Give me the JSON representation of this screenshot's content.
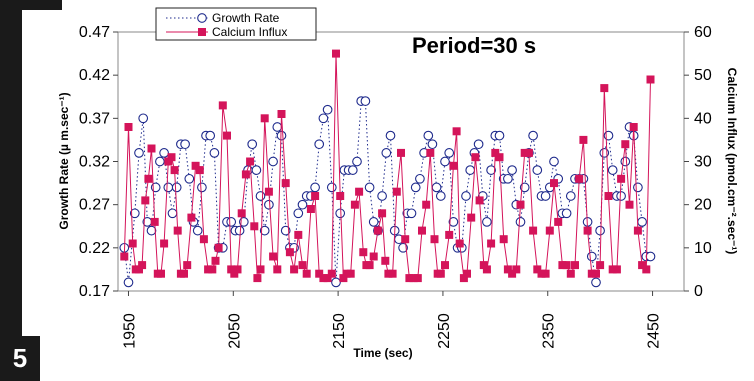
{
  "panel_label": "5",
  "annotation": "Period=30 s",
  "chart_data": {
    "type": "line",
    "xlabel": "Time (sec)",
    "ylabel": "Growth Rate (µ m.sec⁻¹)",
    "y2label": "Calcium Influx (pmol.cm⁻².sec⁻¹)",
    "xlim": [
      1940,
      2480
    ],
    "ylim": [
      0.17,
      0.47
    ],
    "y2lim": [
      0,
      60
    ],
    "x_ticks": [
      "1950",
      "2050",
      "2150",
      "2250",
      "2350",
      "2450"
    ],
    "y_ticks": [
      "0.47",
      "0.42",
      "0.37",
      "0.32",
      "0.27",
      "0.22",
      "0.17"
    ],
    "y2_ticks": [
      "60",
      "50",
      "40",
      "30",
      "20",
      "10",
      "0"
    ],
    "legend": {
      "position": "top-left",
      "entries": [
        "Growth Rate",
        "Calcium Influx"
      ]
    },
    "grid": false,
    "colors": {
      "growth": "#1e2a8c",
      "calcium": "#d4145a"
    },
    "series": [
      {
        "name": "Growth Rate",
        "axis": "left",
        "values": [
          [
            1946,
            0.22
          ],
          [
            1950,
            0.18
          ],
          [
            1956,
            0.26
          ],
          [
            1960,
            0.33
          ],
          [
            1964,
            0.37
          ],
          [
            1968,
            0.25
          ],
          [
            1972,
            0.24
          ],
          [
            1976,
            0.29
          ],
          [
            1980,
            0.32
          ],
          [
            1984,
            0.33
          ],
          [
            1988,
            0.29
          ],
          [
            1992,
            0.26
          ],
          [
            1996,
            0.29
          ],
          [
            2000,
            0.34
          ],
          [
            2004,
            0.34
          ],
          [
            2008,
            0.3
          ],
          [
            2012,
            0.25
          ],
          [
            2016,
            0.24
          ],
          [
            2020,
            0.29
          ],
          [
            2024,
            0.35
          ],
          [
            2028,
            0.35
          ],
          [
            2032,
            0.33
          ],
          [
            2036,
            0.22
          ],
          [
            2040,
            0.22
          ],
          [
            2044,
            0.25
          ],
          [
            2048,
            0.25
          ],
          [
            2052,
            0.24
          ],
          [
            2056,
            0.24
          ],
          [
            2060,
            0.25
          ],
          [
            2064,
            0.31
          ],
          [
            2068,
            0.34
          ],
          [
            2072,
            0.31
          ],
          [
            2076,
            0.28
          ],
          [
            2080,
            0.24
          ],
          [
            2084,
            0.27
          ],
          [
            2088,
            0.32
          ],
          [
            2092,
            0.36
          ],
          [
            2096,
            0.35
          ],
          [
            2100,
            0.24
          ],
          [
            2104,
            0.22
          ],
          [
            2108,
            0.22
          ],
          [
            2112,
            0.26
          ],
          [
            2116,
            0.27
          ],
          [
            2120,
            0.28
          ],
          [
            2124,
            0.28
          ],
          [
            2128,
            0.29
          ],
          [
            2132,
            0.34
          ],
          [
            2136,
            0.37
          ],
          [
            2140,
            0.38
          ],
          [
            2144,
            0.29
          ],
          [
            2148,
            0.18
          ],
          [
            2152,
            0.26
          ],
          [
            2156,
            0.31
          ],
          [
            2160,
            0.31
          ],
          [
            2164,
            0.31
          ],
          [
            2168,
            0.32
          ],
          [
            2172,
            0.39
          ],
          [
            2176,
            0.39
          ],
          [
            2180,
            0.29
          ],
          [
            2184,
            0.25
          ],
          [
            2188,
            0.24
          ],
          [
            2192,
            0.28
          ],
          [
            2196,
            0.33
          ],
          [
            2200,
            0.35
          ],
          [
            2204,
            0.24
          ],
          [
            2208,
            0.23
          ],
          [
            2212,
            0.22
          ],
          [
            2216,
            0.26
          ],
          [
            2220,
            0.26
          ],
          [
            2224,
            0.29
          ],
          [
            2228,
            0.3
          ],
          [
            2232,
            0.33
          ],
          [
            2236,
            0.35
          ],
          [
            2240,
            0.34
          ],
          [
            2244,
            0.29
          ],
          [
            2248,
            0.28
          ],
          [
            2252,
            0.32
          ],
          [
            2256,
            0.33
          ],
          [
            2260,
            0.25
          ],
          [
            2264,
            0.22
          ],
          [
            2268,
            0.22
          ],
          [
            2272,
            0.28
          ],
          [
            2276,
            0.31
          ],
          [
            2280,
            0.33
          ],
          [
            2284,
            0.34
          ],
          [
            2288,
            0.28
          ],
          [
            2292,
            0.25
          ],
          [
            2296,
            0.31
          ],
          [
            2300,
            0.35
          ],
          [
            2304,
            0.35
          ],
          [
            2308,
            0.3
          ],
          [
            2312,
            0.3
          ],
          [
            2316,
            0.31
          ],
          [
            2320,
            0.27
          ],
          [
            2324,
            0.25
          ],
          [
            2328,
            0.29
          ],
          [
            2332,
            0.33
          ],
          [
            2336,
            0.35
          ],
          [
            2340,
            0.31
          ],
          [
            2344,
            0.28
          ],
          [
            2348,
            0.28
          ],
          [
            2352,
            0.29
          ],
          [
            2356,
            0.32
          ],
          [
            2360,
            0.3
          ],
          [
            2364,
            0.26
          ],
          [
            2368,
            0.26
          ],
          [
            2372,
            0.28
          ],
          [
            2376,
            0.3
          ],
          [
            2380,
            0.3
          ],
          [
            2384,
            0.3
          ],
          [
            2388,
            0.25
          ],
          [
            2392,
            0.21
          ],
          [
            2396,
            0.18
          ],
          [
            2400,
            0.24
          ],
          [
            2404,
            0.33
          ],
          [
            2408,
            0.35
          ],
          [
            2412,
            0.31
          ],
          [
            2416,
            0.28
          ],
          [
            2420,
            0.28
          ],
          [
            2424,
            0.32
          ],
          [
            2428,
            0.36
          ],
          [
            2432,
            0.35
          ],
          [
            2436,
            0.29
          ],
          [
            2440,
            0.25
          ],
          [
            2444,
            0.21
          ],
          [
            2448,
            0.21
          ]
        ]
      },
      {
        "name": "Calcium Influx",
        "axis": "right",
        "values": [
          [
            1946,
            8
          ],
          [
            1950,
            38
          ],
          [
            1954,
            11
          ],
          [
            1957,
            5
          ],
          [
            1960,
            5
          ],
          [
            1963,
            6
          ],
          [
            1966,
            21
          ],
          [
            1969,
            26
          ],
          [
            1972,
            33
          ],
          [
            1975,
            16
          ],
          [
            1978,
            4
          ],
          [
            1981,
            4
          ],
          [
            1984,
            11
          ],
          [
            1988,
            30
          ],
          [
            1991,
            31
          ],
          [
            1994,
            28
          ],
          [
            1997,
            14
          ],
          [
            2000,
            4
          ],
          [
            2003,
            4
          ],
          [
            2006,
            6
          ],
          [
            2010,
            17
          ],
          [
            2014,
            29
          ],
          [
            2018,
            28
          ],
          [
            2022,
            12
          ],
          [
            2026,
            5
          ],
          [
            2030,
            5
          ],
          [
            2033,
            7
          ],
          [
            2036,
            10
          ],
          [
            2040,
            43
          ],
          [
            2044,
            36
          ],
          [
            2048,
            5
          ],
          [
            2051,
            4
          ],
          [
            2054,
            5
          ],
          [
            2058,
            18
          ],
          [
            2062,
            27
          ],
          [
            2066,
            30
          ],
          [
            2070,
            15
          ],
          [
            2073,
            3
          ],
          [
            2076,
            5
          ],
          [
            2080,
            40
          ],
          [
            2084,
            23
          ],
          [
            2088,
            8
          ],
          [
            2092,
            5
          ],
          [
            2096,
            41
          ],
          [
            2100,
            25
          ],
          [
            2104,
            9
          ],
          [
            2108,
            5
          ],
          [
            2112,
            13
          ],
          [
            2116,
            6
          ],
          [
            2120,
            4
          ],
          [
            2124,
            19
          ],
          [
            2128,
            22
          ],
          [
            2132,
            4
          ],
          [
            2136,
            3
          ],
          [
            2140,
            3
          ],
          [
            2144,
            4
          ],
          [
            2148,
            55
          ],
          [
            2152,
            22
          ],
          [
            2155,
            3
          ],
          [
            2158,
            4
          ],
          [
            2162,
            4
          ],
          [
            2166,
            20
          ],
          [
            2170,
            23
          ],
          [
            2174,
            9
          ],
          [
            2177,
            6
          ],
          [
            2180,
            6
          ],
          [
            2184,
            8
          ],
          [
            2188,
            14
          ],
          [
            2192,
            18
          ],
          [
            2195,
            7
          ],
          [
            2198,
            4
          ],
          [
            2202,
            4
          ],
          [
            2206,
            23
          ],
          [
            2210,
            32
          ],
          [
            2214,
            12
          ],
          [
            2218,
            3
          ],
          [
            2222,
            3
          ],
          [
            2226,
            3
          ],
          [
            2230,
            14
          ],
          [
            2234,
            20
          ],
          [
            2238,
            32
          ],
          [
            2242,
            12
          ],
          [
            2245,
            4
          ],
          [
            2248,
            4
          ],
          [
            2252,
            6
          ],
          [
            2256,
            13
          ],
          [
            2260,
            29
          ],
          [
            2263,
            37
          ],
          [
            2266,
            11
          ],
          [
            2270,
            3
          ],
          [
            2273,
            4
          ],
          [
            2277,
            17
          ],
          [
            2281,
            31
          ],
          [
            2285,
            21
          ],
          [
            2289,
            6
          ],
          [
            2292,
            5
          ],
          [
            2296,
            11
          ],
          [
            2300,
            32
          ],
          [
            2304,
            31
          ],
          [
            2308,
            12
          ],
          [
            2312,
            5
          ],
          [
            2316,
            4
          ],
          [
            2320,
            5
          ],
          [
            2324,
            20
          ],
          [
            2328,
            32
          ],
          [
            2332,
            32
          ],
          [
            2336,
            14
          ],
          [
            2340,
            5
          ],
          [
            2344,
            4
          ],
          [
            2348,
            4
          ],
          [
            2352,
            14
          ],
          [
            2356,
            25
          ],
          [
            2360,
            16
          ],
          [
            2364,
            6
          ],
          [
            2368,
            6
          ],
          [
            2372,
            4
          ],
          [
            2376,
            6
          ],
          [
            2380,
            26
          ],
          [
            2384,
            35
          ],
          [
            2388,
            14
          ],
          [
            2392,
            4
          ],
          [
            2396,
            4
          ],
          [
            2400,
            6
          ],
          [
            2404,
            47
          ],
          [
            2408,
            22
          ],
          [
            2412,
            5
          ],
          [
            2416,
            5
          ],
          [
            2420,
            26
          ],
          [
            2424,
            34
          ],
          [
            2428,
            20
          ],
          [
            2432,
            38
          ],
          [
            2436,
            14
          ],
          [
            2440,
            6
          ],
          [
            2444,
            5
          ],
          [
            2448,
            49
          ]
        ]
      }
    ]
  }
}
